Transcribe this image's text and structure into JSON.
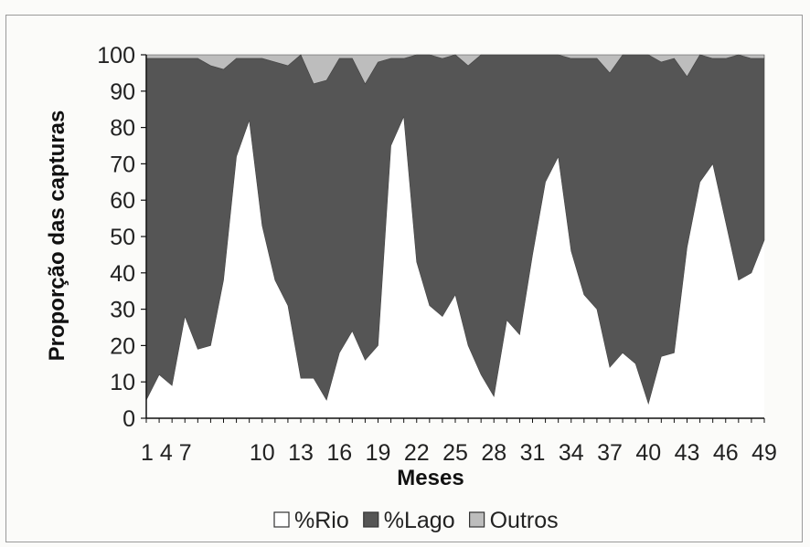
{
  "chart_data": {
    "type": "area",
    "stacked": true,
    "xlabel": "Meses",
    "ylabel": "Proporção das capturas",
    "ylim": [
      0,
      100
    ],
    "yticks": [
      0,
      10,
      20,
      30,
      40,
      50,
      60,
      70,
      80,
      90,
      100
    ],
    "x": [
      1,
      2,
      3,
      4,
      5,
      6,
      7,
      8,
      9,
      10,
      11,
      12,
      13,
      14,
      15,
      16,
      17,
      18,
      19,
      20,
      21,
      22,
      23,
      24,
      25,
      26,
      27,
      28,
      29,
      30,
      31,
      32,
      33,
      34,
      35,
      36,
      37,
      38,
      39,
      40,
      41,
      42,
      43,
      44,
      45,
      46,
      47,
      48,
      49
    ],
    "x_tick_labels": [
      "1",
      "4",
      "7",
      "10",
      "13",
      "16",
      "19",
      "22",
      "25",
      "28",
      "31",
      "34",
      "37",
      "40",
      "43",
      "46",
      "49"
    ],
    "x_tick_label_text": [
      "1 4 7",
      "10",
      "13",
      "16",
      "19",
      "22",
      "25",
      "28",
      "31",
      "34",
      "37",
      "40",
      "43",
      "46",
      "49"
    ],
    "grid": false,
    "legend_placement": "bottom",
    "series": [
      {
        "name": "%Rio",
        "color": "#ffffff",
        "values": [
          5,
          12,
          9,
          28,
          19,
          20,
          38,
          72,
          82,
          53,
          38,
          31,
          11,
          11,
          5,
          18,
          24,
          16,
          20,
          75,
          83,
          43,
          31,
          28,
          34,
          20,
          12,
          6,
          27,
          23,
          45,
          65,
          72,
          46,
          34,
          30,
          14,
          18,
          15,
          4,
          17,
          18,
          47,
          65,
          70,
          54,
          38,
          40,
          49
        ]
      },
      {
        "name": "%Lago",
        "color": "#555555",
        "values": [
          94,
          87,
          90,
          71,
          80,
          77,
          58,
          27,
          17,
          46,
          60,
          66,
          89,
          81,
          88,
          81,
          75,
          76,
          78,
          24,
          16,
          57,
          69,
          71,
          66,
          77,
          88,
          94,
          73,
          77,
          55,
          35,
          28,
          53,
          65,
          69,
          81,
          82,
          85,
          96,
          81,
          81,
          47,
          35,
          29,
          45,
          62,
          59,
          50
        ]
      },
      {
        "name": "Outros",
        "color": "#bdbdbd",
        "values": [
          1,
          1,
          1,
          1,
          1,
          3,
          4,
          1,
          1,
          1,
          2,
          3,
          0,
          8,
          7,
          1,
          1,
          8,
          2,
          1,
          1,
          0,
          0,
          1,
          0,
          3,
          0,
          0,
          0,
          0,
          0,
          0,
          0,
          1,
          1,
          1,
          5,
          0,
          0,
          0,
          2,
          1,
          6,
          0,
          1,
          1,
          0,
          1,
          1
        ]
      }
    ]
  }
}
